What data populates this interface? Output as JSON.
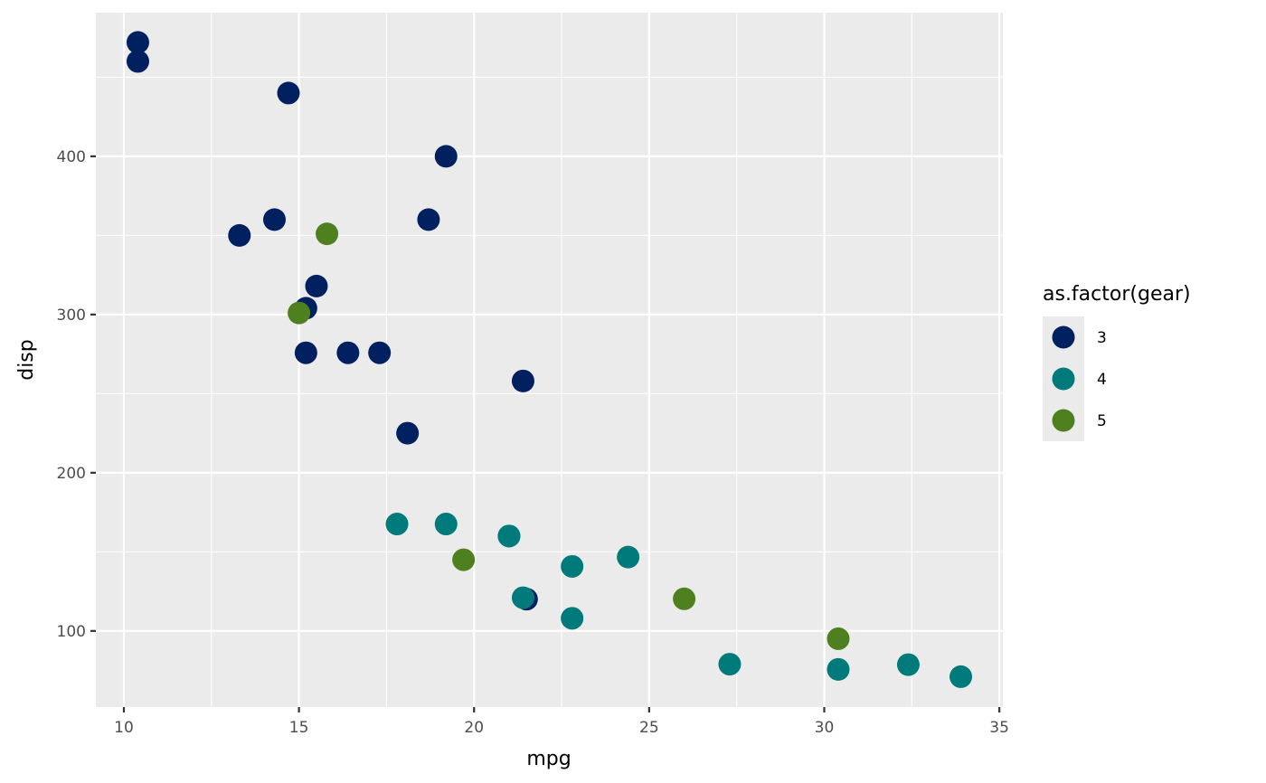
{
  "chart_data": {
    "type": "scatter",
    "title": "",
    "xlabel": "mpg",
    "ylabel": "disp",
    "xlim": [
      9.2,
      35.1
    ],
    "ylim": [
      51.9,
      490.8
    ],
    "xticks": [
      10,
      15,
      20,
      25,
      30,
      35
    ],
    "yticks": [
      100,
      200,
      300,
      400
    ],
    "grid": true,
    "legend": {
      "title": "as.factor(gear)",
      "position": "right"
    },
    "series": [
      {
        "name": "3",
        "color": "#002060",
        "points": [
          {
            "x": 21.4,
            "y": 258
          },
          {
            "x": 18.7,
            "y": 360
          },
          {
            "x": 18.1,
            "y": 225
          },
          {
            "x": 14.3,
            "y": 360
          },
          {
            "x": 16.4,
            "y": 275.8
          },
          {
            "x": 17.3,
            "y": 275.8
          },
          {
            "x": 15.2,
            "y": 275.8
          },
          {
            "x": 10.4,
            "y": 472
          },
          {
            "x": 10.4,
            "y": 460
          },
          {
            "x": 14.7,
            "y": 440
          },
          {
            "x": 21.5,
            "y": 120.1
          },
          {
            "x": 15.5,
            "y": 318
          },
          {
            "x": 15.2,
            "y": 304
          },
          {
            "x": 13.3,
            "y": 350
          },
          {
            "x": 19.2,
            "y": 400
          }
        ]
      },
      {
        "name": "4",
        "color": "#007A7A",
        "points": [
          {
            "x": 21.0,
            "y": 160
          },
          {
            "x": 21.0,
            "y": 160
          },
          {
            "x": 22.8,
            "y": 108
          },
          {
            "x": 24.4,
            "y": 146.7
          },
          {
            "x": 22.8,
            "y": 140.8
          },
          {
            "x": 19.2,
            "y": 167.6
          },
          {
            "x": 17.8,
            "y": 167.6
          },
          {
            "x": 32.4,
            "y": 78.7
          },
          {
            "x": 30.4,
            "y": 75.7
          },
          {
            "x": 33.9,
            "y": 71.1
          },
          {
            "x": 27.3,
            "y": 79
          },
          {
            "x": 21.4,
            "y": 121
          }
        ]
      },
      {
        "name": "5",
        "color": "#4E8020",
        "points": [
          {
            "x": 26.0,
            "y": 120.3
          },
          {
            "x": 30.4,
            "y": 95.1
          },
          {
            "x": 15.8,
            "y": 351
          },
          {
            "x": 19.7,
            "y": 145
          },
          {
            "x": 15.0,
            "y": 301
          }
        ]
      }
    ]
  }
}
